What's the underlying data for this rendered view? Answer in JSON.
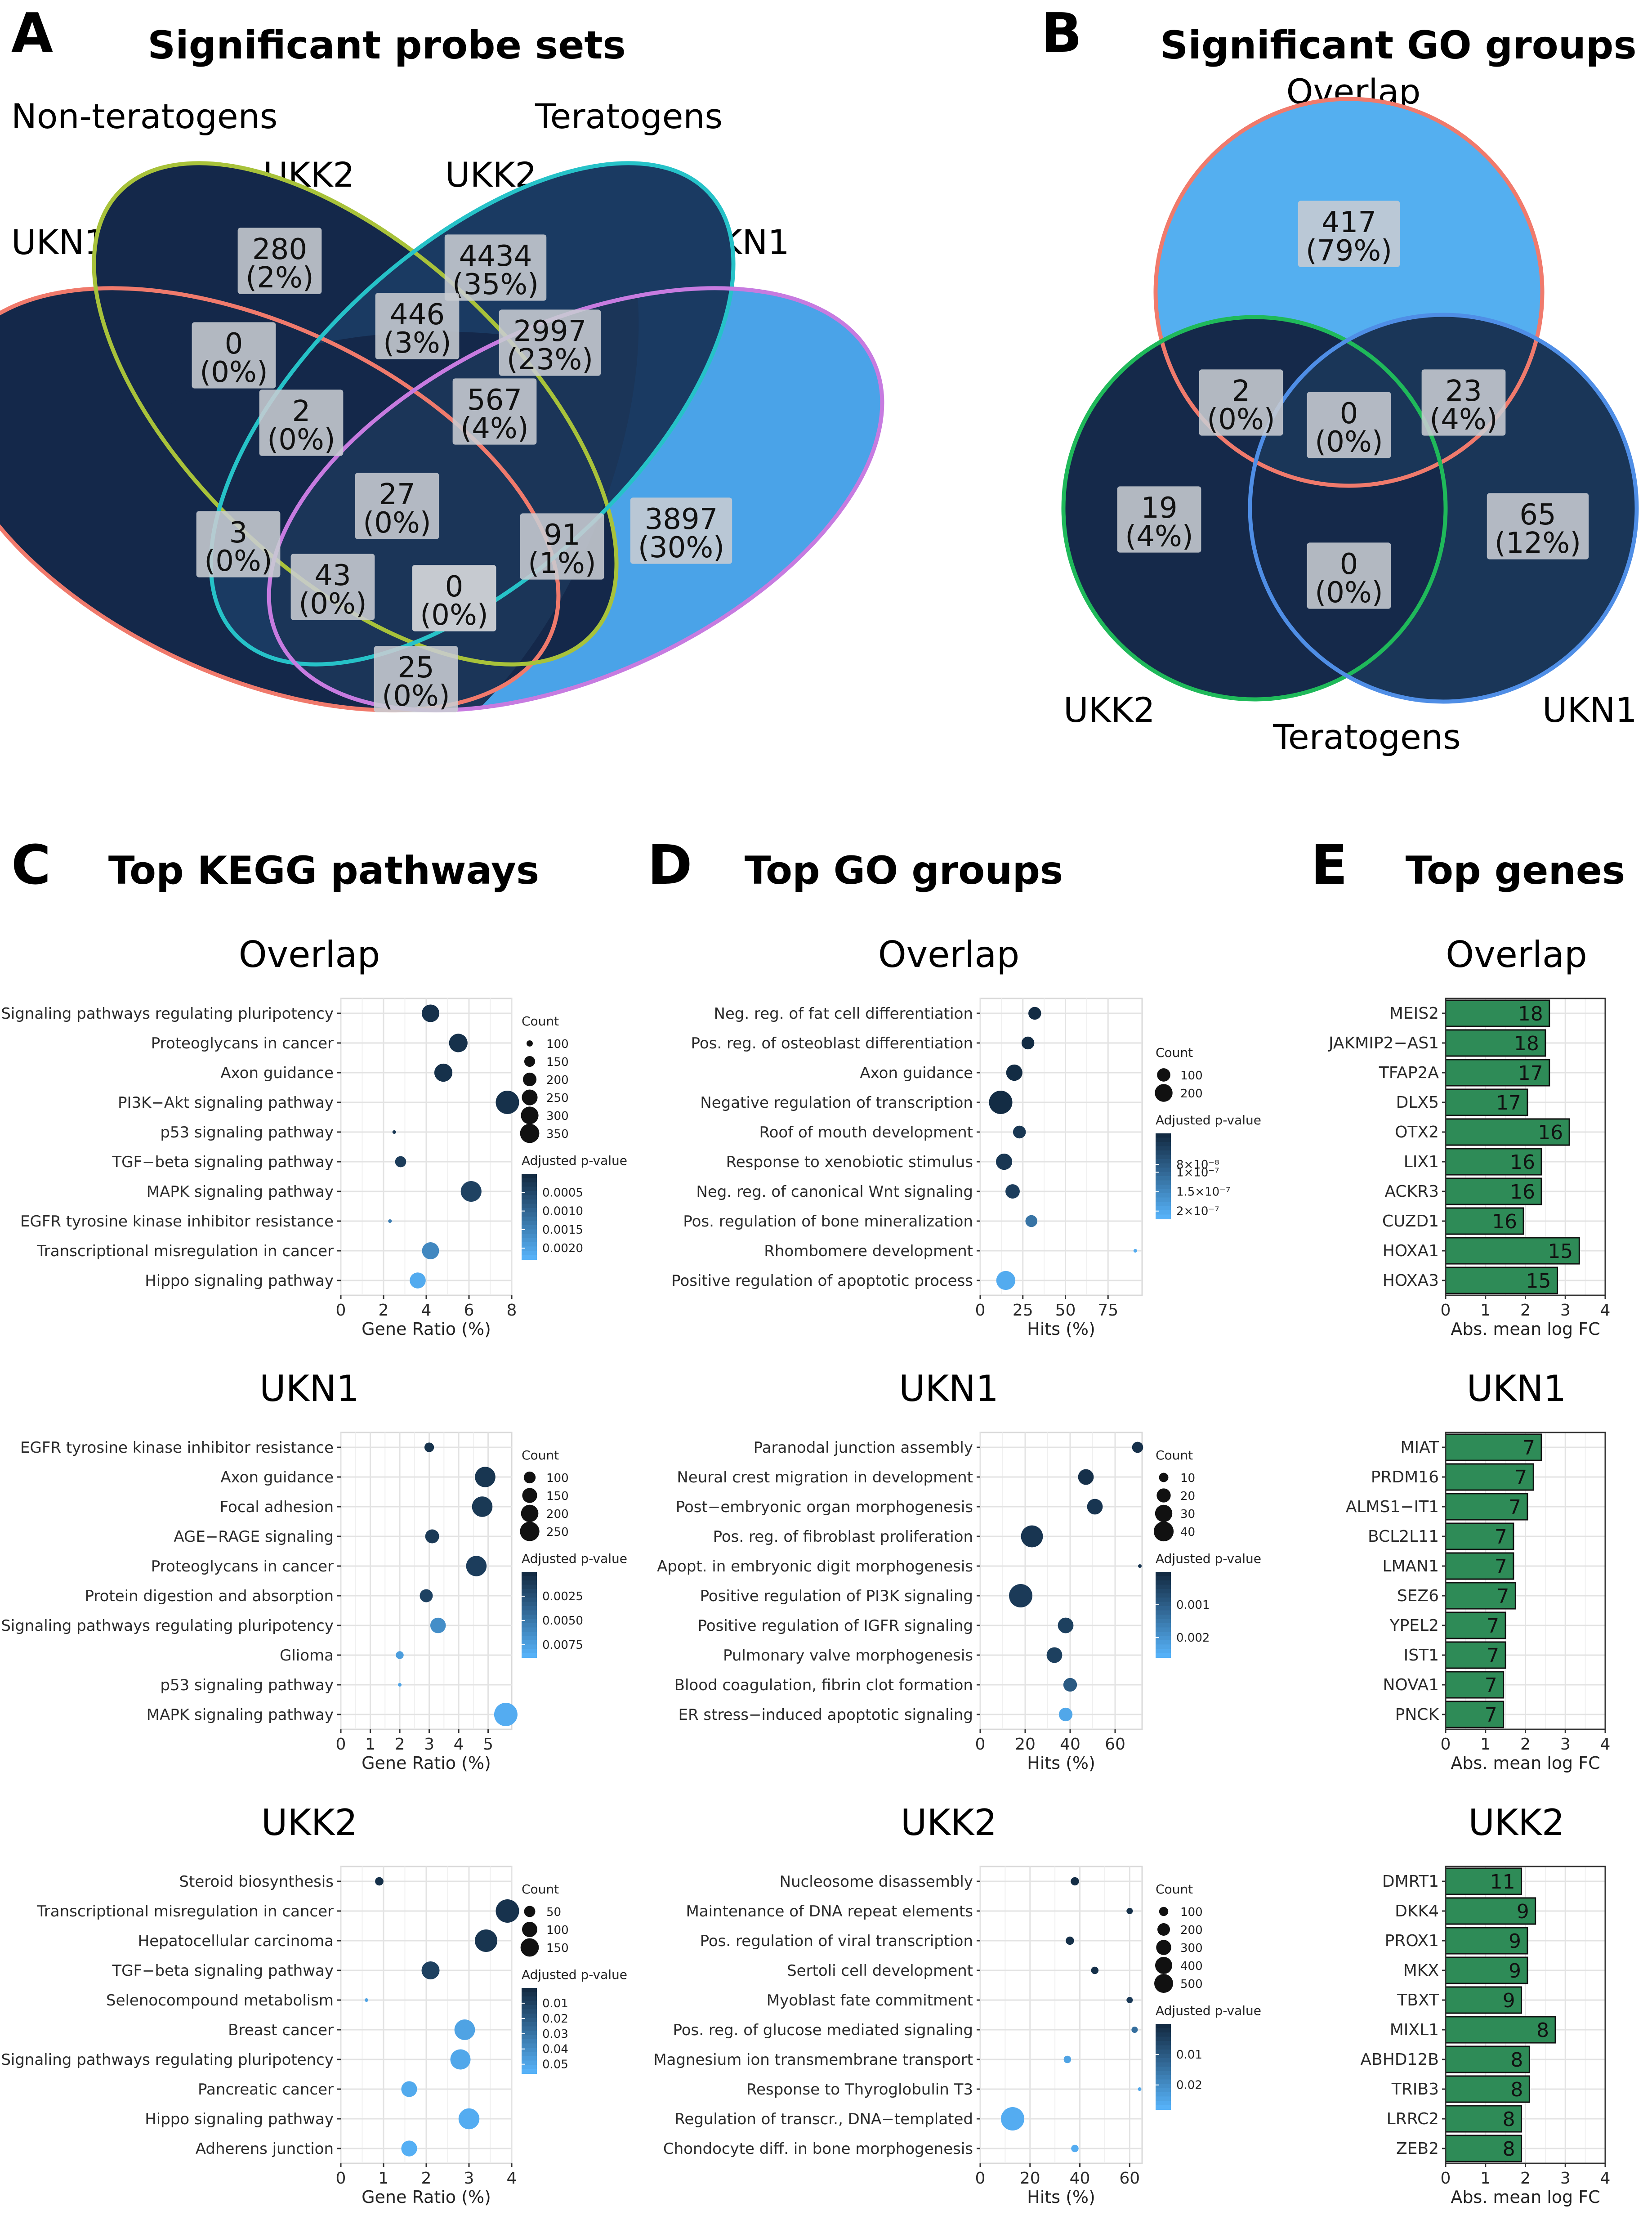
{
  "panels": {
    "A": {
      "letter": "A",
      "title": "Significant probe sets",
      "labels": {
        "non_teratogens": "Non-teratogens",
        "teratogens": "Teratogens",
        "ukn1_left": "UKN1",
        "ukk2_left": "UKK2",
        "ukk2_right": "UKK2",
        "ukn1_right": "UKN1"
      },
      "regions": [
        {
          "n": "280",
          "pct": "(2%)"
        },
        {
          "n": "4434",
          "pct": "(35%)"
        },
        {
          "n": "446",
          "pct": "(3%)"
        },
        {
          "n": "2997",
          "pct": "(23%)"
        },
        {
          "n": "0",
          "pct": "(0%)"
        },
        {
          "n": "2",
          "pct": "(0%)"
        },
        {
          "n": "567",
          "pct": "(4%)"
        },
        {
          "n": "0",
          "pct": "(0%)"
        },
        {
          "n": "3897",
          "pct": "(30%)"
        },
        {
          "n": "27",
          "pct": "(0%)"
        },
        {
          "n": "3",
          "pct": "(0%)"
        },
        {
          "n": "91",
          "pct": "(1%)"
        },
        {
          "n": "43",
          "pct": "(0%)"
        },
        {
          "n": "0",
          "pct": "(0%)"
        },
        {
          "n": "25",
          "pct": "(0%)"
        }
      ]
    },
    "B": {
      "letter": "B",
      "title": "Significant GO groups",
      "labels": {
        "overlap": "Overlap",
        "ukk2": "UKK2",
        "teratogens": "Teratogens",
        "ukn1": "UKN1"
      },
      "regions": [
        {
          "n": "417",
          "pct": "(79%)"
        },
        {
          "n": "2",
          "pct": "(0%)"
        },
        {
          "n": "0",
          "pct": "(0%)"
        },
        {
          "n": "23",
          "pct": "(4%)"
        },
        {
          "n": "19",
          "pct": "(4%)"
        },
        {
          "n": "65",
          "pct": "(12%)"
        },
        {
          "n": "0",
          "pct": "(0%)"
        }
      ]
    },
    "C": {
      "letter": "C",
      "title": "Top KEGG pathways"
    },
    "D": {
      "letter": "D",
      "title": "Top GO groups"
    },
    "E": {
      "letter": "E",
      "title": "Top genes"
    }
  },
  "common": {
    "count_label": "Count",
    "padj_label": "Adjusted p-value"
  },
  "chart_data": [
    {
      "id": "C1",
      "type": "scatter",
      "title": "Overlap",
      "xlabel": "Gene Ratio (%)",
      "xlim": [
        0,
        8
      ],
      "xticks": [
        0,
        2,
        4,
        6,
        8
      ],
      "categories": [
        "Signaling pathways regulating pluripotency",
        "Proteoglycans in cancer",
        "Axon guidance",
        "PI3K−Akt signaling pathway",
        "p53 signaling pathway",
        "TGF−beta signaling pathway",
        "MAPK signaling pathway",
        "EGFR tyrosine kinase inhibitor resistance",
        "Transcriptional misregulation in cancer",
        "Hippo signaling pathway"
      ],
      "x": [
        4.2,
        5.5,
        4.8,
        7.8,
        2.5,
        2.8,
        6.1,
        2.3,
        4.2,
        3.6
      ],
      "size": [
        230,
        250,
        240,
        370,
        90,
        130,
        300,
        90,
        220,
        200
      ],
      "padj": [
        0.0001,
        0.0001,
        0.0001,
        0.0001,
        0.0002,
        0.0003,
        0.0004,
        0.0014,
        0.0016,
        0.0022
      ],
      "size_legend": {
        "values": [
          100,
          150,
          200,
          250,
          300,
          350
        ],
        "labels": [
          "100",
          "150",
          "200",
          "250",
          "300",
          "350"
        ],
        "range": [
          90,
          370
        ]
      },
      "color_legend": {
        "min": 0,
        "max": 0.0023,
        "ticks": [
          0.0005,
          0.001,
          0.0015,
          0.002
        ],
        "labels": [
          "0.0005",
          "0.0010",
          "0.0015",
          "0.0020"
        ]
      }
    },
    {
      "id": "C2",
      "type": "scatter",
      "title": "UKN1",
      "xlabel": "Gene Ratio (%)",
      "xlim": [
        0,
        5.8
      ],
      "xticks": [
        0,
        1,
        2,
        3,
        4,
        5
      ],
      "categories": [
        "EGFR tyrosine kinase inhibitor resistance",
        "Axon guidance",
        "Focal adhesion",
        "AGE−RAGE signaling",
        "Proteoglycans in cancer",
        "Protein digestion and absorption",
        "Signaling pathways regulating pluripotency",
        "Glioma",
        "p53 signaling pathway",
        "MAPK signaling pathway"
      ],
      "x": [
        3.0,
        4.9,
        4.8,
        3.1,
        4.6,
        2.9,
        3.3,
        2.0,
        2.0,
        5.6
      ],
      "size": [
        60,
        200,
        200,
        100,
        200,
        90,
        120,
        50,
        40,
        260
      ],
      "padj": [
        0.0005,
        0.0007,
        0.0009,
        0.001,
        0.0012,
        0.0015,
        0.0065,
        0.0075,
        0.008,
        0.0085
      ],
      "size_legend": {
        "values": [
          100,
          150,
          200,
          250
        ],
        "labels": [
          "100",
          "150",
          "200",
          "250"
        ],
        "range": [
          40,
          260
        ]
      },
      "color_legend": {
        "min": 0,
        "max": 0.0088,
        "ticks": [
          0.0025,
          0.005,
          0.0075
        ],
        "labels": [
          "0.0025",
          "0.0050",
          "0.0075"
        ]
      }
    },
    {
      "id": "C3",
      "type": "scatter",
      "title": "UKK2",
      "xlabel": "Gene Ratio (%)",
      "xlim": [
        0,
        4
      ],
      "xticks": [
        0,
        1,
        2,
        3,
        4
      ],
      "categories": [
        "Steroid biosynthesis",
        "Transcriptional misregulation in cancer",
        "Hepatocellular carcinoma",
        "TGF−beta signaling pathway",
        "Selenocompound metabolism",
        "Breast cancer",
        "Signaling pathways regulating pluripotency",
        "Pancreatic cancer",
        "Hippo signaling pathway",
        "Adherens junction"
      ],
      "x": [
        0.9,
        3.9,
        3.4,
        2.1,
        0.6,
        2.9,
        2.8,
        1.6,
        3.0,
        1.6
      ],
      "size": [
        20,
        180,
        165,
        100,
        10,
        135,
        130,
        75,
        140,
        75
      ],
      "padj": [
        0.002,
        0.003,
        0.004,
        0.009,
        0.05,
        0.05,
        0.052,
        0.053,
        0.054,
        0.055
      ],
      "size_legend": {
        "values": [
          50,
          100,
          150
        ],
        "labels": [
          "50",
          "100",
          "150"
        ],
        "range": [
          10,
          180
        ]
      },
      "color_legend": {
        "min": 0,
        "max": 0.056,
        "ticks": [
          0.01,
          0.02,
          0.03,
          0.04,
          0.05
        ],
        "labels": [
          "0.01",
          "0.02",
          "0.03",
          "0.04",
          "0.05"
        ]
      }
    },
    {
      "id": "D1",
      "type": "scatter",
      "title": "Overlap",
      "xlabel": "Hits (%)",
      "xlim": [
        0,
        95
      ],
      "xticks": [
        0,
        25,
        50,
        75
      ],
      "xtick_labels": [
        "0",
        "25",
        "50",
        "75"
      ],
      "categories": [
        "Neg. reg. of fat cell differentiation",
        "Pos. reg. of osteoblast differentiation",
        "Axon guidance",
        "Negative regulation of transcription",
        "Roof of mouth development",
        "Response to xenobiotic stimulus",
        "Neg. reg. of canonical Wnt signaling",
        "Pos. regulation of bone mineralization",
        "Rhombomere development",
        "Positive regulation of apoptotic process"
      ],
      "x": [
        32,
        28,
        20,
        12,
        23,
        14,
        19,
        30,
        91,
        15
      ],
      "size": [
        60,
        60,
        110,
        260,
        60,
        110,
        80,
        50,
        5,
        160
      ],
      "padj": [
        1e-09,
        1e-09,
        1e-09,
        1e-09,
        2e-08,
        2e-08,
        3e-08,
        1.2e-07,
        2.1e-07,
        2.1e-07
      ],
      "size_legend": {
        "values": [
          100,
          200
        ],
        "labels": [
          "100",
          "200"
        ],
        "range": [
          5,
          260
        ]
      },
      "color_legend": {
        "min": 0,
        "max": 2.2e-07,
        "ticks": [
          8e-08,
          1e-07,
          1.5e-07,
          2e-07
        ],
        "labels": [
          "8×10⁻⁸",
          "1×10⁻⁷",
          "1.5×10⁻⁷",
          "2×10⁻⁷"
        ]
      }
    },
    {
      "id": "D2",
      "type": "scatter",
      "title": "UKN1",
      "xlabel": "Hits (%)",
      "xlim": [
        0,
        72
      ],
      "xticks": [
        0,
        20,
        40,
        60
      ],
      "categories": [
        "Paranodal junction assembly",
        "Neural crest migration in development",
        "Post−embryonic organ morphogenesis",
        "Pos. reg. of fibroblast proliferation",
        "Apopt. in embryonic digit morphogenesis",
        "Positive regulation of PI3K signaling",
        "Positive regulation of IGFR signaling",
        "Pulmonary valve morphogenesis",
        "Blood coagulation, fibrin clot formation",
        "ER stress−induced apoptotic signaling"
      ],
      "x": [
        70,
        47,
        51,
        23,
        71,
        18,
        38,
        33,
        40,
        38
      ],
      "size": [
        10,
        18,
        18,
        35,
        5,
        40,
        18,
        18,
        14,
        14
      ],
      "padj": [
        0.0001,
        0.0001,
        0.0002,
        0.0002,
        0.0002,
        0.0003,
        0.0004,
        0.0004,
        0.0009,
        0.0024
      ],
      "size_legend": {
        "values": [
          10,
          20,
          30,
          40
        ],
        "labels": [
          "10",
          "20",
          "30",
          "40"
        ],
        "range": [
          5,
          40
        ]
      },
      "color_legend": {
        "min": 0,
        "max": 0.0026,
        "ticks": [
          0.001,
          0.002
        ],
        "labels": [
          "0.001",
          "0.002"
        ]
      }
    },
    {
      "id": "D3",
      "type": "scatter",
      "title": "UKK2",
      "xlabel": "Hits (%)",
      "xlim": [
        0,
        65
      ],
      "xticks": [
        0,
        20,
        40,
        60
      ],
      "categories": [
        "Nucleosome disassembly",
        "Maintenance of DNA repeat elements",
        "Pos. regulation of viral transcription",
        "Sertoli cell development",
        "Myoblast fate commitment",
        "Pos. reg. of glucose mediated signaling",
        "Magnesium ion transmembrane transport",
        "Response to Thyroglobulin T3",
        "Regulation of transcr., DNA−templated",
        "Chondocyte diff. in bone morphogenesis"
      ],
      "x": [
        38,
        60,
        36,
        46,
        60,
        62,
        35,
        64,
        13,
        38
      ],
      "size": [
        60,
        40,
        60,
        50,
        40,
        40,
        50,
        30,
        560,
        50
      ],
      "padj": [
        0.0005,
        0.001,
        0.001,
        0.001,
        0.003,
        0.014,
        0.025,
        0.026,
        0.027,
        0.027
      ],
      "size_legend": {
        "values": [
          100,
          200,
          300,
          400,
          500
        ],
        "labels": [
          "100",
          "200",
          "300",
          "400",
          "500"
        ],
        "range": [
          30,
          560
        ]
      },
      "color_legend": {
        "min": 0,
        "max": 0.028,
        "ticks": [
          0.01,
          0.02
        ],
        "labels": [
          "0.01",
          "0.02"
        ]
      }
    },
    {
      "id": "E1",
      "type": "bar",
      "title": "Overlap",
      "xlabel": "Abs. mean log FC",
      "xlim": [
        0,
        4
      ],
      "xticks": [
        0,
        1,
        2,
        3,
        4
      ],
      "categories": [
        "MEIS2",
        "JAKMIP2−AS1",
        "TFAP2A",
        "DLX5",
        "OTX2",
        "LIX1",
        "ACKR3",
        "CUZD1",
        "HOXA1",
        "HOXA3"
      ],
      "values": [
        2.6,
        2.5,
        2.6,
        2.05,
        3.1,
        2.4,
        2.4,
        1.95,
        3.35,
        2.8
      ],
      "labels": [
        "18",
        "18",
        "17",
        "17",
        "16",
        "16",
        "16",
        "16",
        "15",
        "15"
      ]
    },
    {
      "id": "E2",
      "type": "bar",
      "title": "UKN1",
      "xlabel": "Abs. mean log FC",
      "xlim": [
        0,
        4
      ],
      "xticks": [
        0,
        1,
        2,
        3,
        4
      ],
      "categories": [
        "MIAT",
        "PRDM16",
        "ALMS1−IT1",
        "BCL2L11",
        "LMAN1",
        "SEZ6",
        "YPEL2",
        "IST1",
        "NOVA1",
        "PNCK"
      ],
      "values": [
        2.4,
        2.2,
        2.05,
        1.7,
        1.7,
        1.75,
        1.5,
        1.5,
        1.45,
        1.45
      ],
      "labels": [
        "7",
        "7",
        "7",
        "7",
        "7",
        "7",
        "7",
        "7",
        "7",
        "7"
      ]
    },
    {
      "id": "E3",
      "type": "bar",
      "title": "UKK2",
      "xlabel": "Abs. mean log FC",
      "xlim": [
        0,
        4
      ],
      "xticks": [
        0,
        1,
        2,
        3,
        4
      ],
      "categories": [
        "DMRT1",
        "DKK4",
        "PROX1",
        "MKX",
        "TBXT",
        "MIXL1",
        "ABHD12B",
        "TRIB3",
        "LRRC2",
        "ZEB2"
      ],
      "values": [
        1.9,
        2.25,
        2.05,
        2.05,
        1.9,
        2.75,
        2.1,
        2.1,
        1.9,
        1.9
      ],
      "labels": [
        "11",
        "9",
        "9",
        "9",
        "9",
        "8",
        "8",
        "8",
        "8",
        "8"
      ]
    }
  ]
}
